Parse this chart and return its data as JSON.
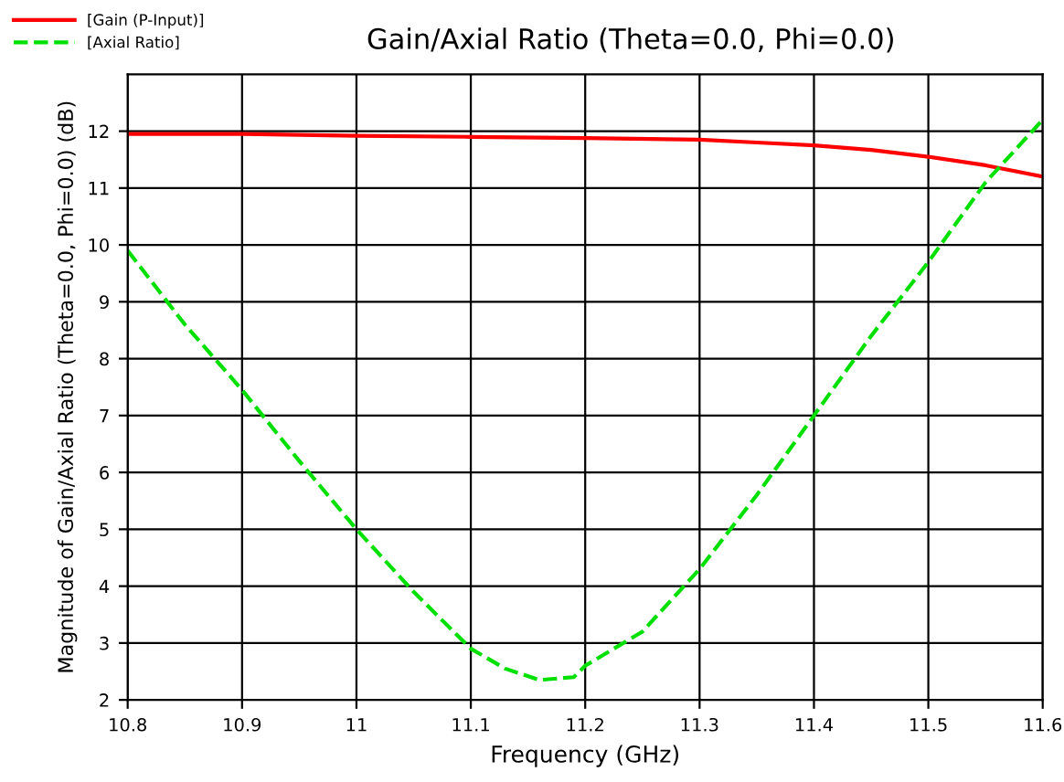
{
  "chart_data": {
    "type": "line",
    "title": "Gain/Axial Ratio (Theta=0.0, Phi=0.0)",
    "xlabel": "Frequency (GHz)",
    "ylabel": "Magnitude of Gain/Axial Ratio (Theta=0.0, Phi=0.0) (dB)",
    "xlim": [
      10.8,
      11.6
    ],
    "xticks": [
      10.8,
      10.9,
      11,
      11.1,
      11.2,
      11.3,
      11.4,
      11.5,
      11.6
    ],
    "ylim": [
      2,
      13
    ],
    "yticks": [
      2,
      3,
      4,
      5,
      6,
      7,
      8,
      9,
      10,
      11,
      12
    ],
    "grid": true,
    "legend": "top left",
    "series": [
      {
        "name": "[Gain (P-Input)]",
        "color": "#ff0000",
        "line_style": "solid",
        "x": [
          10.8,
          10.9,
          11.0,
          11.1,
          11.2,
          11.3,
          11.35,
          11.4,
          11.45,
          11.5,
          11.55,
          11.6
        ],
        "values": [
          11.95,
          11.95,
          11.92,
          11.9,
          11.88,
          11.85,
          11.8,
          11.75,
          11.67,
          11.55,
          11.4,
          11.2
        ]
      },
      {
        "name": "[Axial Ratio]",
        "color": "#00e000",
        "line_style": "dashed",
        "x": [
          10.8,
          10.85,
          10.9,
          10.95,
          11.0,
          11.05,
          11.1,
          11.13,
          11.16,
          11.19,
          11.2,
          11.25,
          11.3,
          11.35,
          11.4,
          11.45,
          11.5,
          11.55,
          11.6
        ],
        "values": [
          9.9,
          8.6,
          7.45,
          6.2,
          5.0,
          3.9,
          2.9,
          2.55,
          2.35,
          2.4,
          2.6,
          3.2,
          4.3,
          5.6,
          7.0,
          8.4,
          9.7,
          11.1,
          12.2
        ]
      }
    ]
  }
}
